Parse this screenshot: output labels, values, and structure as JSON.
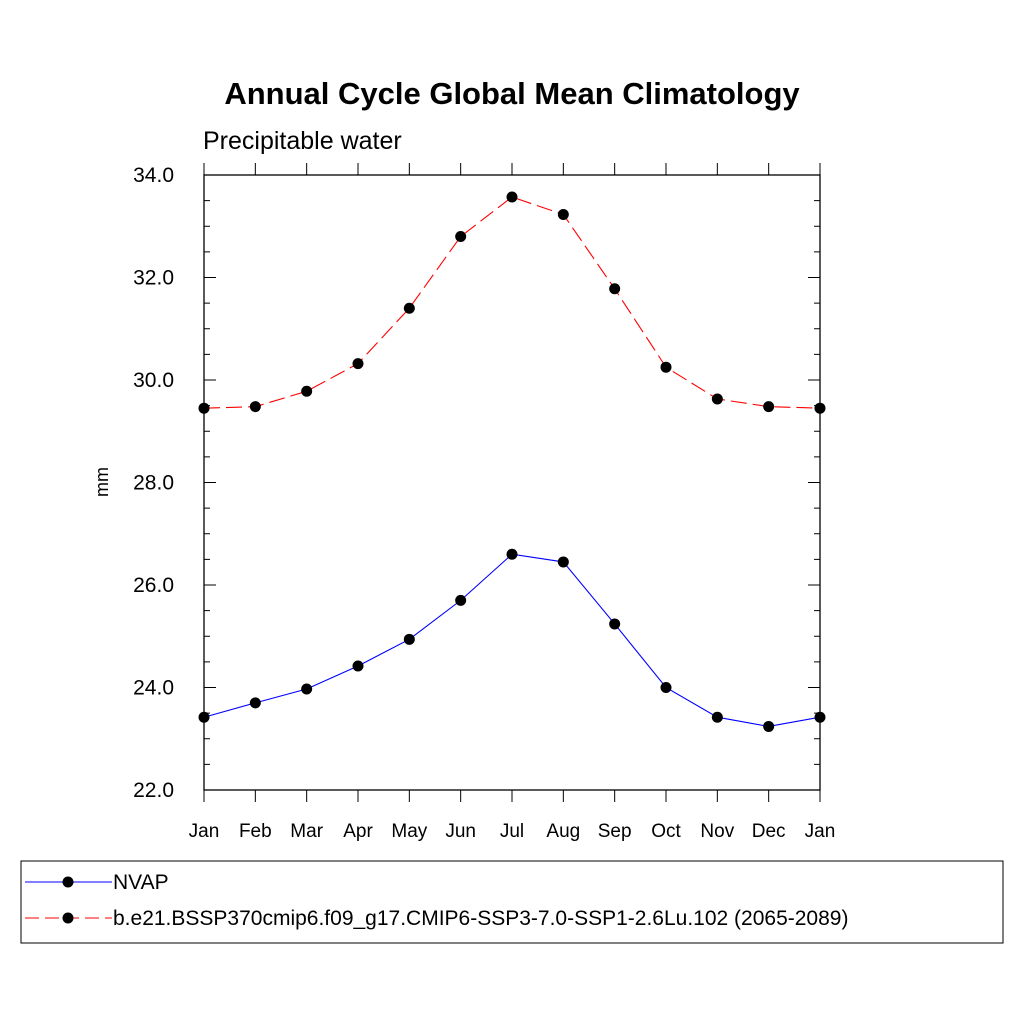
{
  "chart_data": {
    "type": "line",
    "title": "Annual Cycle Global Mean Climatology",
    "subtitle": "Precipitable water",
    "xlabel": "",
    "ylabel": "mm",
    "categories": [
      "Jan",
      "Feb",
      "Mar",
      "Apr",
      "May",
      "Jun",
      "Jul",
      "Aug",
      "Sep",
      "Oct",
      "Nov",
      "Dec",
      "Jan"
    ],
    "ylim": [
      22.0,
      34.0
    ],
    "yticks": [
      "22.0",
      "24.0",
      "26.0",
      "28.0",
      "30.0",
      "32.0",
      "34.0"
    ],
    "grid": false,
    "legend_position": "bottom",
    "series": [
      {
        "name": "NVAP",
        "color": "#0000ff",
        "line_style": "solid",
        "marker": "filled-circle",
        "values": [
          23.42,
          23.7,
          23.97,
          24.42,
          24.94,
          25.7,
          26.6,
          26.45,
          25.24,
          24.0,
          23.42,
          23.24,
          23.42
        ]
      },
      {
        "name": "b.e21.BSSP370cmip6.f09_g17.CMIP6-SSP3-7.0-SSP1-2.6Lu.102 (2065-2089)",
        "color": "#ff0000",
        "line_style": "dashed",
        "marker": "filled-circle",
        "values": [
          29.45,
          29.48,
          29.78,
          30.32,
          31.4,
          32.8,
          33.57,
          33.23,
          31.78,
          30.25,
          29.63,
          29.48,
          29.45
        ]
      }
    ]
  }
}
